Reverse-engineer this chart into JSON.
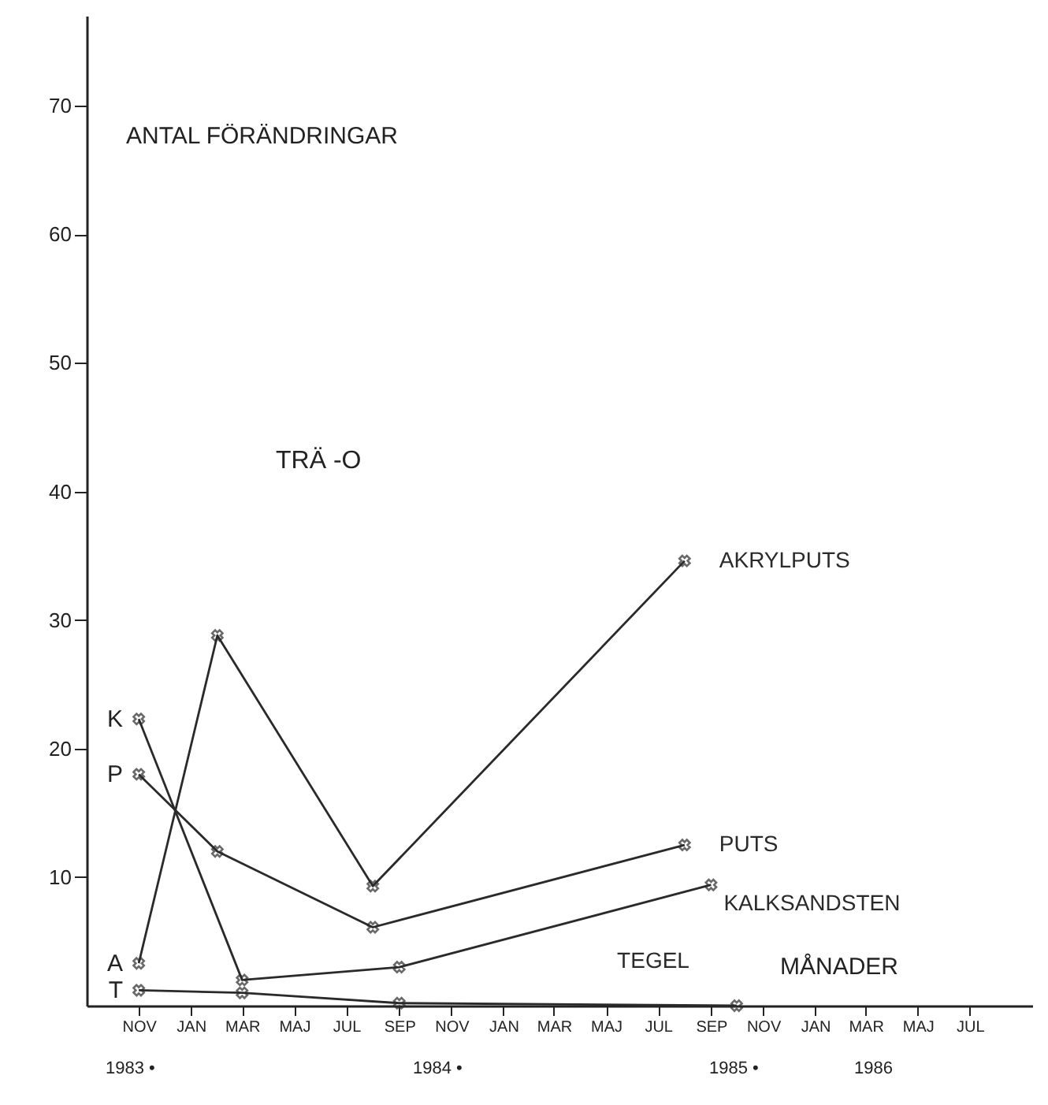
{
  "chart_data": {
    "type": "line",
    "ylabel": "ANTAL FÖRÄNDRINGAR",
    "xlabel": "MÅNADER",
    "series": [
      {
        "name": "AKRYLPUTS",
        "color": "#2a2a2a",
        "x": [
          "1983-11",
          "1984-02",
          "1984-08",
          "1985-08"
        ],
        "values": [
          3.3,
          28.8,
          9.3,
          34.6
        ]
      },
      {
        "name": "PUTS",
        "color": "#2a2a2a",
        "x": [
          "1983-11",
          "1984-02",
          "1984-08",
          "1985-08"
        ],
        "values": [
          18,
          12,
          6.1,
          12.5
        ]
      },
      {
        "name": "KALKSANDSTEN",
        "color": "#2a2a2a",
        "x": [
          "1983-11",
          "1984-03",
          "1984-09",
          "1985-09"
        ],
        "values": [
          22.3,
          2,
          3,
          9.4
        ]
      },
      {
        "name": "TEGEL",
        "color": "#2a2a2a",
        "x": [
          "1983-11",
          "1984-03",
          "1984-09",
          "1985-10"
        ],
        "values": [
          1.2,
          1,
          0.2,
          0
        ]
      }
    ],
    "xlim": [
      "1983-09-01",
      "1986-09-12"
    ],
    "ylim": [
      0,
      77
    ],
    "xticks": [
      {
        "value": "1983-11",
        "label": "NOV"
      },
      {
        "value": "1984-01",
        "label": "JAN"
      },
      {
        "value": "1984-03",
        "label": "MAR"
      },
      {
        "value": "1984-05",
        "label": "MAJ"
      },
      {
        "value": "1984-07",
        "label": "JUL"
      },
      {
        "value": "1984-09",
        "label": "SEP"
      },
      {
        "value": "1984-11",
        "label": "NOV"
      },
      {
        "value": "1985-01",
        "label": "JAN"
      },
      {
        "value": "1985-03",
        "label": "MAR"
      },
      {
        "value": "1985-05",
        "label": "MAJ"
      },
      {
        "value": "1985-07",
        "label": "JUL"
      },
      {
        "value": "1985-09",
        "label": "SEP"
      },
      {
        "value": "1985-11",
        "label": "NOV"
      },
      {
        "value": "1986-01",
        "label": "JAN"
      },
      {
        "value": "1986-03",
        "label": "MAR"
      },
      {
        "value": "1986-05",
        "label": "MAJ"
      },
      {
        "value": "1986-07",
        "label": "JUL"
      }
    ],
    "yticks": [
      10,
      20,
      30,
      40,
      50,
      60,
      70
    ],
    "annotations": [
      "TRÄ -O",
      "1983 •",
      "1984 •",
      "1985 •",
      "1986",
      {
        "text": "A",
        "x": "1983-11",
        "y": 3.3
      },
      {
        "text": "P",
        "x": "1983-11",
        "y": 18
      },
      {
        "text": "K",
        "x": "1983-11",
        "y": 22.3
      },
      {
        "text": "T",
        "x": "1983-11",
        "y": 1.2
      }
    ],
    "marker": "cross",
    "line_style": "solid",
    "grid": false
  }
}
